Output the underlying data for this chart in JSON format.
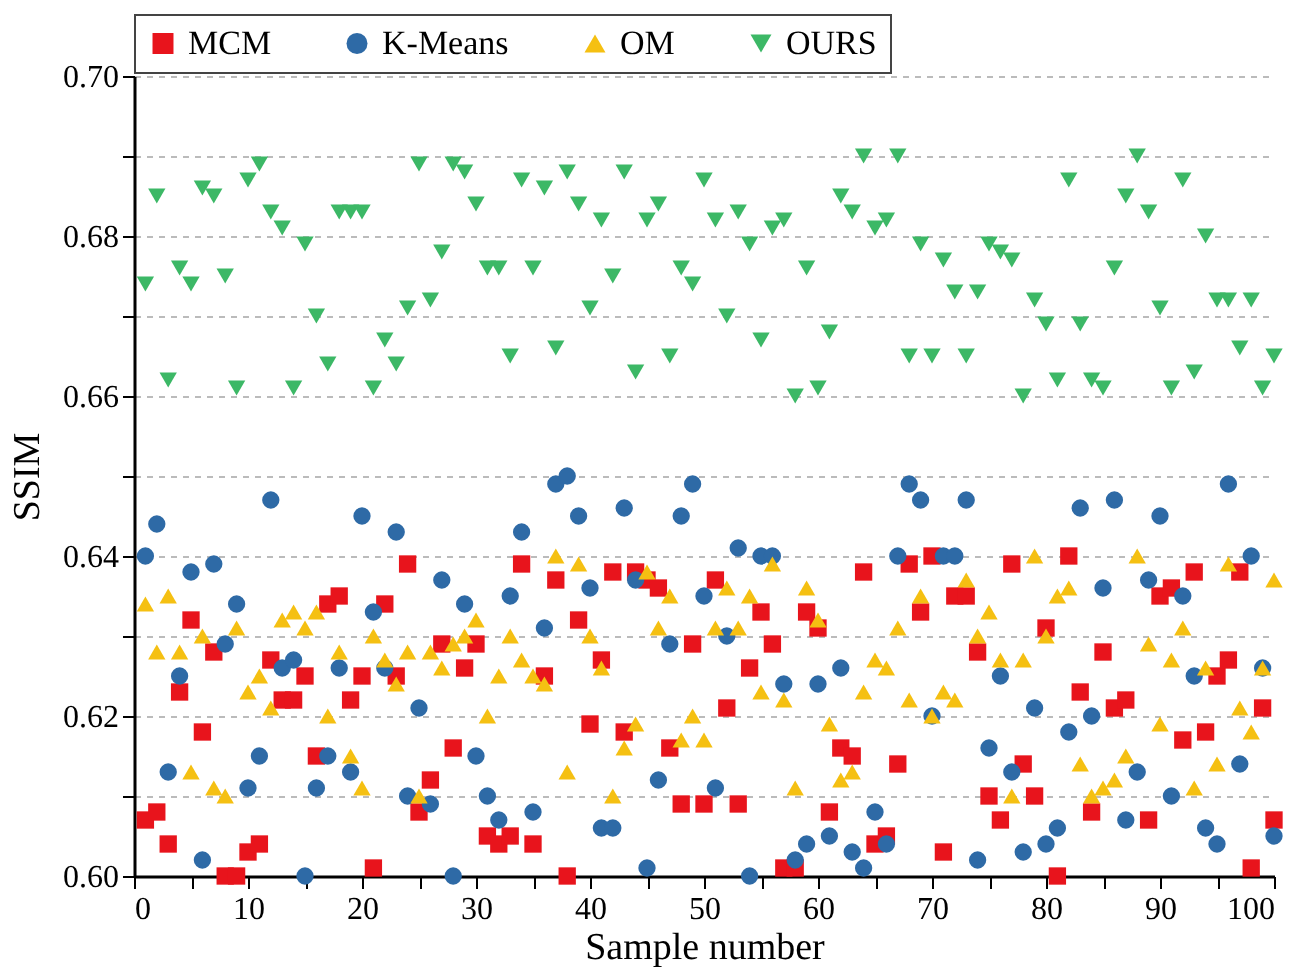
{
  "chart_data": {
    "type": "scatter",
    "xlabel": "Sample number",
    "ylabel": "SSIM",
    "x": [
      1,
      2,
      3,
      4,
      5,
      6,
      7,
      8,
      9,
      10,
      11,
      12,
      13,
      14,
      15,
      16,
      17,
      18,
      19,
      20,
      21,
      22,
      23,
      24,
      25,
      26,
      27,
      28,
      29,
      30,
      31,
      32,
      33,
      34,
      35,
      36,
      37,
      38,
      39,
      40,
      41,
      42,
      43,
      44,
      45,
      46,
      47,
      48,
      49,
      50,
      51,
      52,
      53,
      54,
      55,
      56,
      57,
      58,
      59,
      60,
      61,
      62,
      63,
      64,
      65,
      66,
      67,
      68,
      69,
      70,
      71,
      72,
      73,
      74,
      75,
      76,
      77,
      78,
      79,
      80,
      81,
      82,
      83,
      84,
      85,
      86,
      87,
      88,
      89,
      90,
      91,
      92,
      93,
      94,
      95,
      96,
      97,
      98,
      99,
      100
    ],
    "series": [
      {
        "name": "MCM",
        "color": "#e8141c",
        "marker": "square",
        "values": [
          0.607,
          0.608,
          0.604,
          0.623,
          0.632,
          0.618,
          0.628,
          0.6,
          0.6,
          0.603,
          0.604,
          0.627,
          0.622,
          0.622,
          0.625,
          0.615,
          0.634,
          0.635,
          0.622,
          0.625,
          0.601,
          0.634,
          0.625,
          0.639,
          0.608,
          0.612,
          0.629,
          0.616,
          0.626,
          0.629,
          0.605,
          0.604,
          0.605,
          0.639,
          0.604,
          0.625,
          0.637,
          0.6,
          0.632,
          0.619,
          0.627,
          0.638,
          0.618,
          0.638,
          0.637,
          0.636,
          0.616,
          0.609,
          0.629,
          0.609,
          0.637,
          0.621,
          0.609,
          0.626,
          0.633,
          0.629,
          0.601,
          0.601,
          0.633,
          0.631,
          0.608,
          0.616,
          0.615,
          0.638,
          0.604,
          0.605,
          0.614,
          0.639,
          0.633,
          0.64,
          0.603,
          0.635,
          0.635,
          0.628,
          0.61,
          0.607,
          0.639,
          0.614,
          0.61,
          0.631,
          0.6,
          0.64,
          0.623,
          0.608,
          0.628,
          0.621,
          0.622,
          null,
          0.607,
          0.635,
          0.636,
          0.617,
          0.638,
          0.618,
          0.625,
          0.627,
          0.638,
          0.601,
          0.621,
          0.607
        ]
      },
      {
        "name": "K-Means",
        "color": "#2e6aa6",
        "marker": "circle",
        "values": [
          0.64,
          0.644,
          0.613,
          0.625,
          0.638,
          0.602,
          0.639,
          0.629,
          0.634,
          0.611,
          0.615,
          0.647,
          0.626,
          0.627,
          0.6,
          0.611,
          0.615,
          0.626,
          0.613,
          0.645,
          0.633,
          0.626,
          0.643,
          0.61,
          0.621,
          0.609,
          0.637,
          0.6,
          0.634,
          0.615,
          0.61,
          0.607,
          0.635,
          0.643,
          0.608,
          0.631,
          0.649,
          0.65,
          0.645,
          0.636,
          0.606,
          0.606,
          0.646,
          0.637,
          0.601,
          0.612,
          0.629,
          0.645,
          0.649,
          0.635,
          0.611,
          0.63,
          0.641,
          0.6,
          0.64,
          0.64,
          0.624,
          0.602,
          0.604,
          0.624,
          0.605,
          0.626,
          0.603,
          0.601,
          0.608,
          0.604,
          0.64,
          0.649,
          0.647,
          0.62,
          0.64,
          0.64,
          0.647,
          0.602,
          0.616,
          0.625,
          0.613,
          0.603,
          0.621,
          0.604,
          0.606,
          0.618,
          0.646,
          0.62,
          0.636,
          0.647,
          0.607,
          0.613,
          0.637,
          0.645,
          0.61,
          0.635,
          0.625,
          0.606,
          0.604,
          0.649,
          0.614,
          0.64,
          0.626,
          0.605
        ]
      },
      {
        "name": "OM",
        "color": "#f5c012",
        "marker": "triangle",
        "values": [
          0.634,
          0.628,
          0.635,
          0.628,
          0.613,
          0.63,
          0.611,
          0.61,
          0.631,
          0.623,
          0.625,
          0.621,
          0.632,
          0.633,
          0.631,
          0.633,
          0.62,
          0.628,
          0.615,
          0.611,
          0.63,
          0.627,
          0.624,
          0.628,
          0.61,
          0.628,
          0.626,
          0.629,
          0.63,
          0.632,
          0.62,
          0.625,
          0.63,
          0.627,
          0.625,
          0.624,
          0.64,
          0.613,
          0.639,
          0.63,
          0.626,
          0.61,
          0.616,
          0.619,
          0.638,
          0.631,
          0.635,
          0.617,
          0.62,
          0.617,
          0.631,
          0.636,
          0.631,
          0.635,
          0.623,
          0.639,
          0.622,
          0.611,
          0.636,
          0.632,
          0.619,
          0.612,
          0.613,
          0.623,
          0.627,
          0.626,
          0.631,
          0.622,
          0.635,
          0.62,
          0.623,
          0.622,
          0.637,
          0.63,
          0.633,
          0.627,
          0.61,
          0.627,
          0.64,
          0.63,
          0.635,
          0.636,
          0.614,
          0.61,
          0.611,
          0.612,
          0.615,
          0.64,
          0.629,
          0.619,
          0.627,
          0.631,
          0.611,
          0.626,
          0.614,
          0.639,
          0.621,
          0.618,
          0.626,
          0.637
        ]
      },
      {
        "name": "OURS",
        "color": "#3cb866",
        "marker": "triangle-down",
        "values": [
          0.674,
          0.685,
          0.662,
          0.676,
          0.674,
          0.686,
          0.685,
          0.675,
          0.661,
          0.687,
          0.689,
          0.683,
          0.681,
          0.661,
          0.679,
          0.67,
          0.664,
          0.683,
          0.683,
          0.683,
          0.661,
          0.667,
          0.664,
          0.671,
          0.689,
          0.672,
          0.678,
          0.689,
          0.688,
          0.684,
          0.676,
          0.676,
          0.665,
          0.687,
          0.676,
          0.686,
          0.666,
          0.688,
          0.684,
          0.671,
          0.682,
          0.675,
          0.688,
          0.663,
          0.682,
          0.684,
          0.665,
          0.676,
          0.674,
          0.687,
          0.682,
          0.67,
          0.683,
          0.679,
          0.667,
          0.681,
          0.682,
          0.66,
          0.676,
          0.661,
          0.668,
          0.685,
          0.683,
          0.69,
          0.681,
          0.682,
          0.69,
          0.665,
          0.679,
          0.665,
          0.677,
          0.673,
          0.665,
          0.673,
          0.679,
          0.678,
          0.677,
          0.66,
          0.672,
          0.669,
          0.662,
          0.687,
          0.669,
          0.662,
          0.661,
          0.676,
          0.685,
          0.69,
          0.683,
          0.671,
          0.661,
          0.687,
          0.663,
          0.68,
          0.672,
          0.672,
          0.666,
          0.672,
          0.661,
          0.665
        ]
      }
    ],
    "xlim": [
      0,
      100
    ],
    "xticks": [
      0,
      {
        "value": 5,
        "label": null
      },
      10,
      {
        "value": 15,
        "label": null
      },
      20,
      {
        "value": 25,
        "label": null
      },
      30,
      {
        "value": 35,
        "label": null
      },
      40,
      {
        "value": 45,
        "label": null
      },
      50,
      {
        "value": 55,
        "label": null
      },
      60,
      {
        "value": 65,
        "label": null
      },
      70,
      {
        "value": 75,
        "label": null
      },
      80,
      {
        "value": 85,
        "label": null
      },
      90,
      {
        "value": 95,
        "label": null
      },
      100
    ],
    "ylim": [
      0.6,
      0.7
    ],
    "yticks": [
      {
        "value": 0.6,
        "label": "0.60"
      },
      {
        "value": 0.61,
        "label": null
      },
      {
        "value": 0.62,
        "label": "0.62"
      },
      {
        "value": 0.63,
        "label": null
      },
      {
        "value": 0.64,
        "label": "0.64"
      },
      {
        "value": 0.65,
        "label": null
      },
      {
        "value": 0.66,
        "label": "0.66"
      },
      {
        "value": 0.67,
        "label": null
      },
      {
        "value": 0.68,
        "label": "0.68"
      },
      {
        "value": 0.69,
        "label": null
      },
      {
        "value": 0.7,
        "label": "0.70"
      }
    ],
    "grid": "y",
    "legend": "top"
  }
}
